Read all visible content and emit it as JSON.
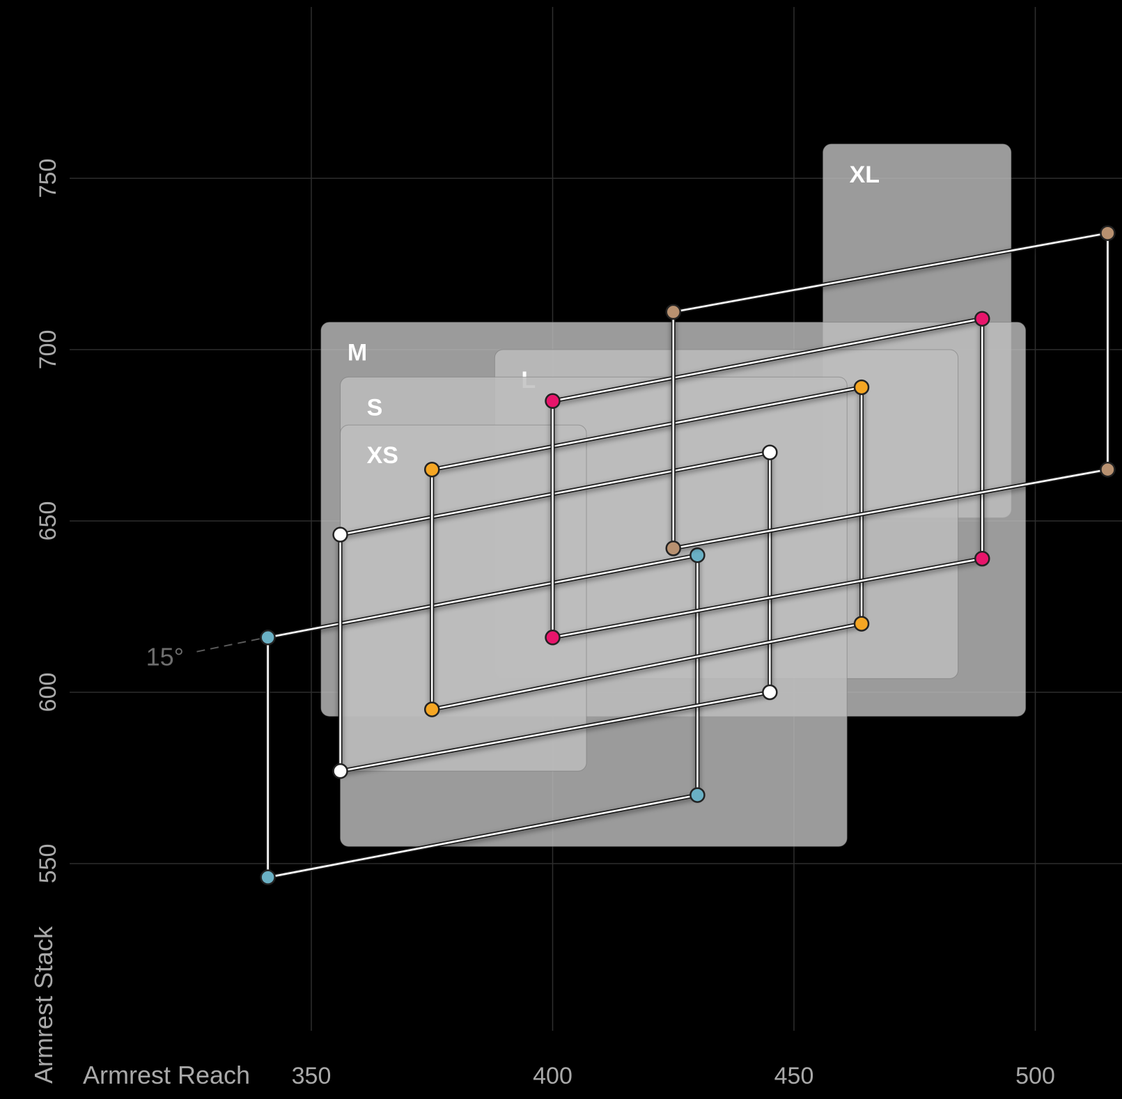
{
  "chart_data": {
    "type": "scatter",
    "title": "",
    "xlabel": "Armrest Reach",
    "ylabel": "Armrest Stack",
    "xlim": [
      306,
      518
    ],
    "ylim": [
      495,
      802
    ],
    "x_ticks": [
      350,
      400,
      450,
      500
    ],
    "y_ticks": [
      550,
      600,
      650,
      700,
      750
    ],
    "grid": true,
    "size_ranges": [
      {
        "name": "XL",
        "x": [
          456,
          495
        ],
        "y": [
          651,
          760
        ]
      },
      {
        "name": "M",
        "x": [
          352,
          498
        ],
        "y": [
          593,
          708
        ]
      },
      {
        "name": "L",
        "x": [
          388,
          484
        ],
        "y": [
          604,
          700
        ]
      },
      {
        "name": "S",
        "x": [
          356,
          461
        ],
        "y": [
          555,
          692
        ]
      },
      {
        "name": "XS",
        "x": [
          356,
          407
        ],
        "y": [
          577,
          678
        ]
      }
    ],
    "series": [
      {
        "color": "#6ab0c4",
        "points": [
          [
            341,
            616
          ],
          [
            430,
            640
          ],
          [
            430,
            570
          ],
          [
            341,
            546
          ]
        ]
      },
      {
        "color": "#ffffff",
        "points": [
          [
            356,
            646
          ],
          [
            445,
            670
          ],
          [
            445,
            600
          ],
          [
            356,
            577
          ]
        ]
      },
      {
        "color": "#f5a623",
        "points": [
          [
            375,
            665
          ],
          [
            464,
            689
          ],
          [
            464,
            620
          ],
          [
            375,
            595
          ]
        ]
      },
      {
        "color": "#e8156b",
        "points": [
          [
            400,
            685
          ],
          [
            489,
            709
          ],
          [
            489,
            639
          ],
          [
            400,
            616
          ]
        ]
      },
      {
        "color": "#b89170",
        "points": [
          [
            425,
            711
          ],
          [
            515,
            734
          ],
          [
            515,
            665
          ],
          [
            425,
            642
          ]
        ]
      }
    ],
    "annotations": [
      {
        "text": "15°"
      }
    ]
  }
}
